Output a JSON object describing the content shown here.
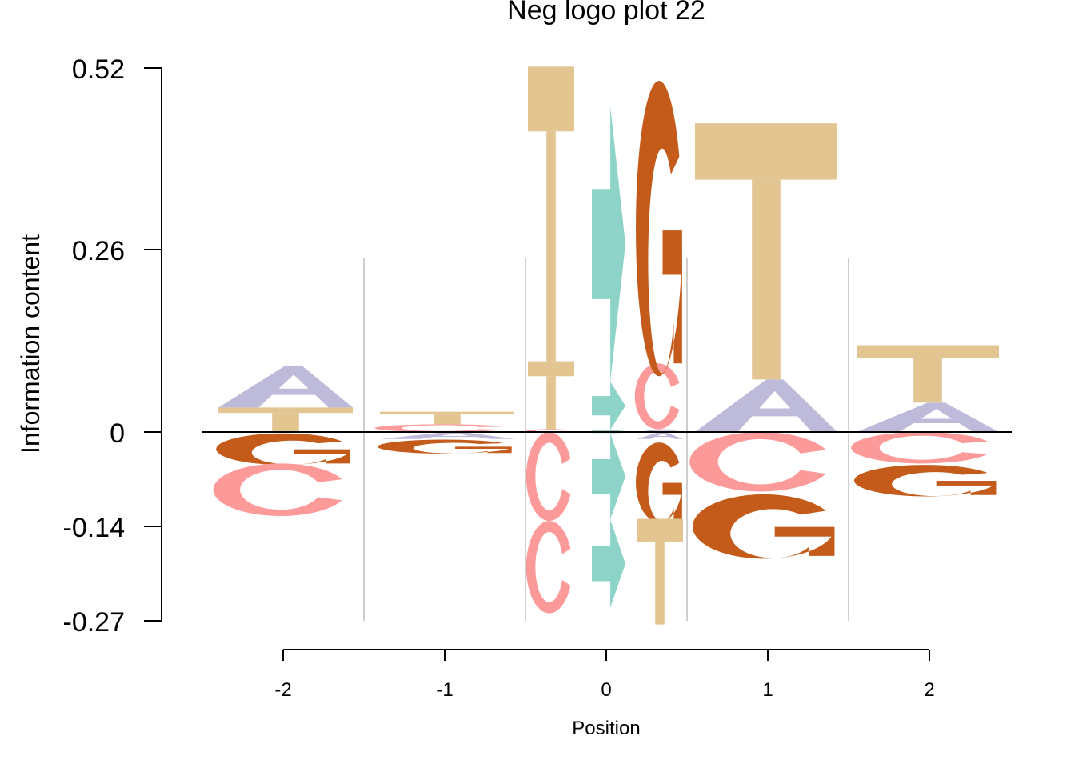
{
  "chart_data": {
    "type": "logo",
    "title": "Neg logo plot 22",
    "ylabel": "Information content",
    "xlabel": "Position",
    "ylim": [
      -0.27,
      0.52
    ],
    "yticks": [
      "0.52",
      "0.26",
      "0",
      "-0.14",
      "-0.27"
    ],
    "ytick_values": [
      0.52,
      0.26,
      0,
      -0.14,
      -0.27
    ],
    "positions": [
      "-2",
      "-1",
      "0",
      "1",
      "2"
    ],
    "colors": {
      "A": "#bebada",
      "C": "#fb9a99",
      "G": "#c45b1b",
      "T": "#e3c592",
      "mod": "#8dd3c7"
    },
    "stacks": [
      {
        "position": "-2",
        "pos": [
          {
            "letter": "T",
            "value": 0.035
          },
          {
            "letter": "A",
            "value": 0.06
          }
        ],
        "neg": [
          {
            "letter": "G",
            "value": 0.045
          },
          {
            "letter": "C",
            "value": 0.075
          }
        ]
      },
      {
        "position": "-1",
        "pos": [
          {
            "letter": "C",
            "value": 0.011
          },
          {
            "letter": "T",
            "value": 0.018
          }
        ],
        "neg": [
          {
            "letter": "A",
            "value": 0.01
          },
          {
            "letter": "G",
            "value": 0.02
          }
        ]
      },
      {
        "position": "0a",
        "pos": [
          {
            "letter": "C",
            "value": 0.004
          },
          {
            "letter": "T",
            "value": 0.097
          },
          {
            "letter": "T",
            "value": 0.421
          }
        ],
        "neg": [
          {
            "letter": "C",
            "value": 0.127
          },
          {
            "letter": "C",
            "value": 0.132
          }
        ]
      },
      {
        "position": "0b",
        "pos": [
          {
            "letter": "mod",
            "value": 0.003
          },
          {
            "letter": "mod",
            "value": 0.069
          },
          {
            "letter": "mod",
            "value": 0.393
          }
        ],
        "neg": [
          {
            "letter": "mod",
            "value": 0.002
          },
          {
            "letter": "mod",
            "value": 0.123
          },
          {
            "letter": "mod",
            "value": 0.126
          }
        ]
      },
      {
        "position": "0c",
        "pos": [
          {
            "letter": "A",
            "value": 0.004
          },
          {
            "letter": "C",
            "value": 0.094
          },
          {
            "letter": "G",
            "value": 0.422
          }
        ],
        "neg": [
          {
            "letter": "A",
            "value": 0.01
          },
          {
            "letter": "G",
            "value": 0.114
          },
          {
            "letter": "T",
            "value": 0.151
          }
        ]
      },
      {
        "position": "1",
        "pos": [
          {
            "letter": "A",
            "value": 0.075
          },
          {
            "letter": "T",
            "value": 0.366
          }
        ],
        "neg": [
          {
            "letter": "C",
            "value": 0.085
          },
          {
            "letter": "G",
            "value": 0.092
          }
        ]
      },
      {
        "position": "2",
        "pos": [
          {
            "letter": "A",
            "value": 0.042
          },
          {
            "letter": "T",
            "value": 0.082
          }
        ],
        "neg": [
          {
            "letter": "C",
            "value": 0.045
          },
          {
            "letter": "G",
            "value": 0.045
          }
        ]
      }
    ]
  }
}
